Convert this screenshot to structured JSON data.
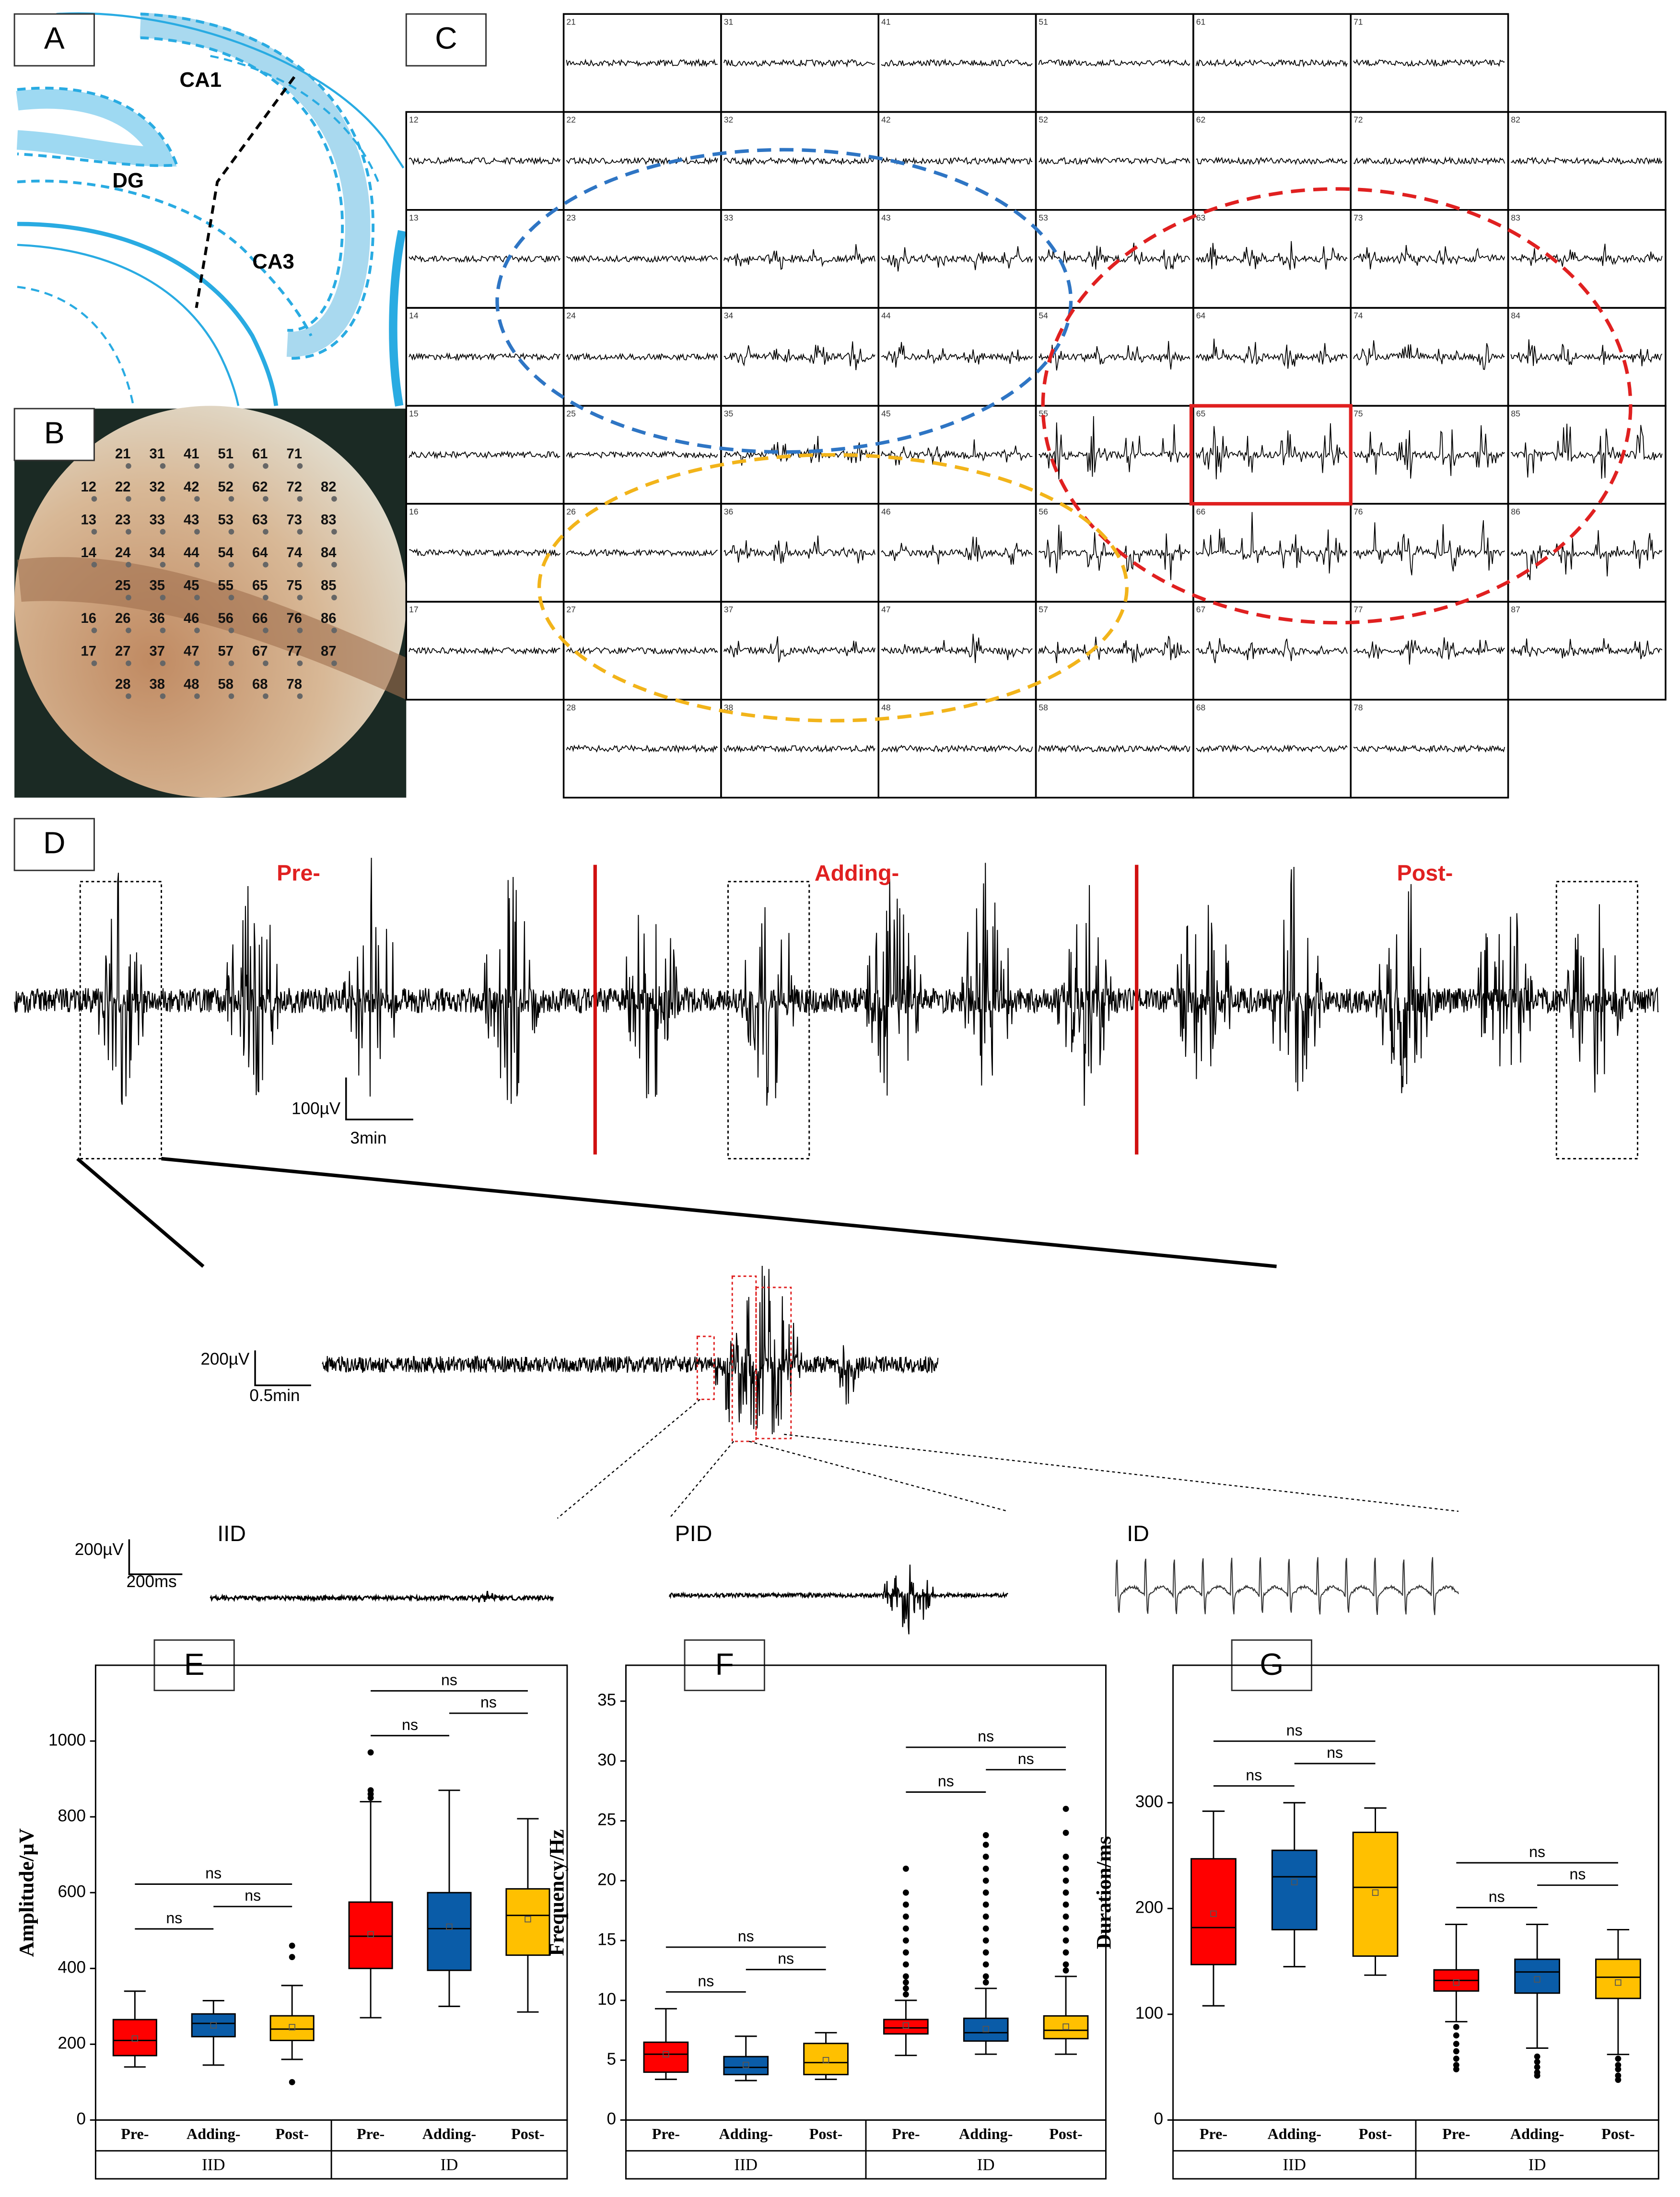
{
  "panel_labels": [
    "A",
    "B",
    "C",
    "D"
  ],
  "hippocampus_labels": [
    "CA1",
    "DG",
    "CA3"
  ],
  "electrodes_b": [
    [
      "21",
      "31",
      "41",
      "51",
      "61",
      "71"
    ],
    [
      "12",
      "22",
      "32",
      "42",
      "52",
      "62",
      "72",
      "82"
    ],
    [
      "13",
      "23",
      "33",
      "43",
      "53",
      "63",
      "73",
      "83"
    ],
    [
      "14",
      "24",
      "34",
      "44",
      "54",
      "64",
      "74",
      "84"
    ],
    [
      "25",
      "35",
      "45",
      "55",
      "65",
      "75",
      "85"
    ],
    [
      "16",
      "26",
      "36",
      "46",
      "56",
      "66",
      "76",
      "86"
    ],
    [
      "17",
      "27",
      "37",
      "47",
      "57",
      "67",
      "77",
      "87"
    ],
    [
      "28",
      "38",
      "48",
      "58",
      "68",
      "78"
    ]
  ],
  "electrodes_c": [
    [
      "21",
      "31",
      "41",
      "51",
      "61",
      "71"
    ],
    [
      "12",
      "22",
      "32",
      "42",
      "52",
      "62",
      "72",
      "82"
    ],
    [
      "13",
      "23",
      "33",
      "43",
      "53",
      "63",
      "73",
      "83"
    ],
    [
      "14",
      "24",
      "34",
      "44",
      "54",
      "64",
      "74",
      "84"
    ],
    [
      "15",
      "25",
      "35",
      "45",
      "55",
      "65",
      "75",
      "85"
    ],
    [
      "16",
      "26",
      "36",
      "46",
      "56",
      "66",
      "76",
      "86"
    ],
    [
      "17",
      "27",
      "37",
      "47",
      "57",
      "67",
      "77",
      "87"
    ],
    [
      "28",
      "38",
      "48",
      "58",
      "68",
      "78"
    ]
  ],
  "recording": {
    "phases": [
      "Pre-",
      "Adding-",
      "Post-"
    ],
    "scale_main": {
      "amplitude": "100µV",
      "time": "3min"
    },
    "scale_zoom": {
      "amplitude": "200µV",
      "time": "0.5min"
    },
    "scale_events": {
      "amplitude": "200µV",
      "time": "200ms"
    },
    "events": [
      "IID",
      "PID",
      "ID"
    ]
  },
  "chart_data": [
    {
      "type": "box",
      "panel": "E",
      "ylabel": "Amplitude/µV",
      "ylim": [
        0,
        1200
      ],
      "yticks": [
        0,
        200,
        400,
        600,
        800,
        1000
      ],
      "categories": [
        "IID",
        "ID"
      ],
      "series": [
        {
          "name": "Pre-",
          "color": "#ff0000",
          "values": [
            {
              "whislo": 140,
              "q1": 170,
              "med": 210,
              "q3": 265,
              "whishi": 340,
              "mean": 215,
              "fliers": []
            },
            {
              "whislo": 270,
              "q1": 400,
              "med": 485,
              "q3": 575,
              "whishi": 840,
              "mean": 490,
              "fliers": [
                850,
                860,
                870,
                970
              ]
            }
          ]
        },
        {
          "name": "Adding-",
          "color": "#0a5ca8",
          "values": [
            {
              "whislo": 145,
              "q1": 220,
              "med": 255,
              "q3": 280,
              "whishi": 315,
              "mean": 250,
              "fliers": []
            },
            {
              "whislo": 300,
              "q1": 395,
              "med": 505,
              "q3": 600,
              "whishi": 870,
              "mean": 510,
              "fliers": []
            }
          ]
        },
        {
          "name": "Post-",
          "color": "#ffc000",
          "values": [
            {
              "whislo": 160,
              "q1": 210,
              "med": 240,
              "q3": 275,
              "whishi": 355,
              "mean": 245,
              "fliers": [
                100,
                430,
                460
              ]
            },
            {
              "whislo": 285,
              "q1": 435,
              "med": 540,
              "q3": 610,
              "whishi": 795,
              "mean": 530,
              "fliers": []
            }
          ]
        }
      ],
      "comparisons": [
        {
          "group": "IID",
          "pair": [
            "Pre-",
            "Adding-"
          ],
          "label": "ns"
        },
        {
          "group": "IID",
          "pair": [
            "Adding-",
            "Post-"
          ],
          "label": "ns"
        },
        {
          "group": "IID",
          "pair": [
            "Pre-",
            "Post-"
          ],
          "label": "ns"
        },
        {
          "group": "ID",
          "pair": [
            "Pre-",
            "Adding-"
          ],
          "label": "ns"
        },
        {
          "group": "ID",
          "pair": [
            "Adding-",
            "Post-"
          ],
          "label": "ns"
        },
        {
          "group": "ID",
          "pair": [
            "Pre-",
            "Post-"
          ],
          "label": "ns"
        }
      ]
    },
    {
      "type": "box",
      "panel": "F",
      "ylabel": "Frequency/Hz",
      "ylim": [
        0,
        38
      ],
      "yticks": [
        0,
        5,
        10,
        15,
        20,
        25,
        30,
        35
      ],
      "categories": [
        "IID",
        "ID"
      ],
      "series": [
        {
          "name": "Pre-",
          "color": "#ff0000",
          "values": [
            {
              "whislo": 3.4,
              "q1": 4,
              "med": 5.5,
              "q3": 6.5,
              "whishi": 9.3,
              "mean": 5.5,
              "fliers": []
            },
            {
              "whislo": 5.4,
              "q1": 7.2,
              "med": 7.7,
              "q3": 8.4,
              "whishi": 10,
              "mean": 7.9,
              "fliers": [
                10.5,
                11,
                11.5,
                12,
                13,
                14,
                15,
                16,
                17,
                18,
                19,
                21
              ]
            }
          ]
        },
        {
          "name": "Adding-",
          "color": "#0a5ca8",
          "values": [
            {
              "whislo": 3.3,
              "q1": 3.8,
              "med": 4.4,
              "q3": 5.3,
              "whishi": 7,
              "mean": 4.6,
              "fliers": []
            },
            {
              "whislo": 5.5,
              "q1": 6.6,
              "med": 7.3,
              "q3": 8.5,
              "whishi": 11,
              "mean": 7.6,
              "fliers": [
                11.5,
                12,
                13,
                14,
                15,
                16,
                17,
                18,
                19,
                20,
                21,
                22,
                23,
                23.8
              ]
            }
          ]
        },
        {
          "name": "Post-",
          "color": "#ffc000",
          "values": [
            {
              "whislo": 3.4,
              "q1": 3.8,
              "med": 4.8,
              "q3": 6.4,
              "whishi": 7.3,
              "mean": 5,
              "fliers": []
            },
            {
              "whislo": 5.5,
              "q1": 6.8,
              "med": 7.5,
              "q3": 8.7,
              "whishi": 12,
              "mean": 7.8,
              "fliers": [
                12.5,
                13,
                14,
                15,
                16,
                17,
                18,
                19,
                20,
                21,
                22,
                24,
                26
              ]
            }
          ]
        }
      ],
      "comparisons": [
        {
          "group": "IID",
          "pair": [
            "Pre-",
            "Adding-"
          ],
          "label": "ns"
        },
        {
          "group": "IID",
          "pair": [
            "Adding-",
            "Post-"
          ],
          "label": "ns"
        },
        {
          "group": "IID",
          "pair": [
            "Pre-",
            "Post-"
          ],
          "label": "ns"
        },
        {
          "group": "ID",
          "pair": [
            "Pre-",
            "Adding-"
          ],
          "label": "ns"
        },
        {
          "group": "ID",
          "pair": [
            "Adding-",
            "Post-"
          ],
          "label": "ns"
        },
        {
          "group": "ID",
          "pair": [
            "Pre-",
            "Post-"
          ],
          "label": "ns"
        }
      ]
    },
    {
      "type": "box",
      "panel": "G",
      "ylabel": "Duration/ms",
      "ylim": [
        0,
        430
      ],
      "yticks": [
        0,
        100,
        200,
        300
      ],
      "categories": [
        "IID",
        "ID"
      ],
      "series": [
        {
          "name": "Pre-",
          "color": "#ff0000",
          "values": [
            {
              "whislo": 108,
              "q1": 147,
              "med": 182,
              "q3": 247,
              "whishi": 292,
              "mean": 195,
              "fliers": []
            },
            {
              "whislo": 93,
              "q1": 122,
              "med": 132,
              "q3": 142,
              "whishi": 185,
              "mean": 130,
              "fliers": [
                48,
                52,
                58,
                65,
                72,
                80,
                88
              ]
            }
          ]
        },
        {
          "name": "Adding-",
          "color": "#0a5ca8",
          "values": [
            {
              "whislo": 145,
              "q1": 180,
              "med": 230,
              "q3": 255,
              "whishi": 300,
              "mean": 225,
              "fliers": []
            },
            {
              "whislo": 68,
              "q1": 120,
              "med": 140,
              "q3": 152,
              "whishi": 185,
              "mean": 133,
              "fliers": [
                42,
                45,
                50,
                55,
                60
              ]
            }
          ]
        },
        {
          "name": "Post-",
          "color": "#ffc000",
          "values": [
            {
              "whislo": 137,
              "q1": 155,
              "med": 220,
              "q3": 272,
              "whishi": 295,
              "mean": 215,
              "fliers": []
            },
            {
              "whislo": 62,
              "q1": 115,
              "med": 135,
              "q3": 152,
              "whishi": 180,
              "mean": 130,
              "fliers": [
                38,
                42,
                48,
                52,
                58
              ]
            }
          ]
        }
      ],
      "comparisons": [
        {
          "group": "IID",
          "pair": [
            "Pre-",
            "Adding-"
          ],
          "label": "ns"
        },
        {
          "group": "IID",
          "pair": [
            "Adding-",
            "Post-"
          ],
          "label": "ns"
        },
        {
          "group": "IID",
          "pair": [
            "Pre-",
            "Post-"
          ],
          "label": "ns"
        },
        {
          "group": "ID",
          "pair": [
            "Pre-",
            "Adding-"
          ],
          "label": "ns"
        },
        {
          "group": "ID",
          "pair": [
            "Adding-",
            "Post-"
          ],
          "label": "ns"
        },
        {
          "group": "ID",
          "pair": [
            "Pre-",
            "Post-"
          ],
          "label": "ns"
        }
      ]
    }
  ]
}
